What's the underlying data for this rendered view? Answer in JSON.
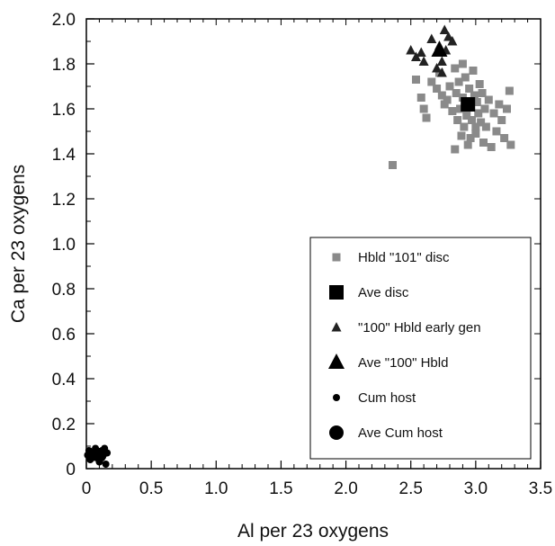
{
  "chart_data": {
    "type": "scatter",
    "title": "",
    "xlabel": "Al per 23 oxygens",
    "ylabel": "Ca per 23 oxygens",
    "xlim": [
      0,
      3.5
    ],
    "ylim": [
      0,
      2.0
    ],
    "xticks": [
      0,
      0.5,
      1.0,
      1.5,
      2.0,
      2.5,
      3.0,
      3.5
    ],
    "xtick_labels": [
      "0",
      "0.5",
      "1.0",
      "1.5",
      "2.0",
      "2.5",
      "3.0",
      "3.5"
    ],
    "yticks": [
      0,
      0.2,
      0.4,
      0.6,
      0.8,
      1.0,
      1.2,
      1.4,
      1.6,
      1.8,
      2.0
    ],
    "ytick_labels": [
      "0",
      "0.2",
      "0.4",
      "0.6",
      "0.8",
      "1.0",
      "1.2",
      "1.4",
      "1.6",
      "1.8",
      "2.0"
    ],
    "grid": false,
    "legend_position": "bottom-right",
    "series": [
      {
        "name": "Hbld \"101\" disc",
        "marker": "small-square",
        "color": "#8a8a8a",
        "points": [
          [
            2.36,
            1.35
          ],
          [
            2.54,
            1.73
          ],
          [
            2.58,
            1.65
          ],
          [
            2.6,
            1.6
          ],
          [
            2.62,
            1.56
          ],
          [
            2.66,
            1.72
          ],
          [
            2.7,
            1.69
          ],
          [
            2.72,
            1.76
          ],
          [
            2.74,
            1.66
          ],
          [
            2.76,
            1.62
          ],
          [
            2.78,
            1.64
          ],
          [
            2.8,
            1.7
          ],
          [
            2.82,
            1.59
          ],
          [
            2.84,
            1.78
          ],
          [
            2.85,
            1.67
          ],
          [
            2.86,
            1.55
          ],
          [
            2.87,
            1.72
          ],
          [
            2.88,
            1.6
          ],
          [
            2.89,
            1.48
          ],
          [
            2.9,
            1.65
          ],
          [
            2.91,
            1.52
          ],
          [
            2.92,
            1.74
          ],
          [
            2.93,
            1.57
          ],
          [
            2.94,
            1.44
          ],
          [
            2.95,
            1.69
          ],
          [
            2.96,
            1.61
          ],
          [
            2.97,
            1.55
          ],
          [
            2.98,
            1.77
          ],
          [
            2.99,
            1.66
          ],
          [
            3.0,
            1.49
          ],
          [
            3.01,
            1.63
          ],
          [
            3.02,
            1.58
          ],
          [
            3.03,
            1.71
          ],
          [
            3.04,
            1.54
          ],
          [
            3.05,
            1.67
          ],
          [
            3.06,
            1.45
          ],
          [
            3.07,
            1.6
          ],
          [
            3.08,
            1.52
          ],
          [
            3.1,
            1.64
          ],
          [
            3.12,
            1.43
          ],
          [
            3.14,
            1.58
          ],
          [
            3.16,
            1.5
          ],
          [
            3.18,
            1.62
          ],
          [
            3.2,
            1.55
          ],
          [
            3.22,
            1.47
          ],
          [
            3.24,
            1.6
          ],
          [
            3.26,
            1.68
          ],
          [
            3.27,
            1.44
          ],
          [
            2.84,
            1.42
          ],
          [
            2.9,
            1.8
          ],
          [
            3.0,
            1.52
          ],
          [
            2.96,
            1.47
          ]
        ]
      },
      {
        "name": "Ave disc",
        "marker": "large-square",
        "color": "#000000",
        "points": [
          [
            2.94,
            1.62
          ]
        ]
      },
      {
        "name": "\"100\" Hbld early gen",
        "marker": "small-triangle",
        "color": "#222222",
        "points": [
          [
            2.5,
            1.86
          ],
          [
            2.54,
            1.83
          ],
          [
            2.58,
            1.85
          ],
          [
            2.6,
            1.81
          ],
          [
            2.66,
            1.91
          ],
          [
            2.7,
            1.78
          ],
          [
            2.72,
            1.88
          ],
          [
            2.74,
            1.81
          ],
          [
            2.76,
            1.95
          ],
          [
            2.77,
            1.86
          ],
          [
            2.79,
            1.92
          ],
          [
            2.82,
            1.9
          ],
          [
            2.74,
            1.76
          ]
        ]
      },
      {
        "name": "Ave \"100\" Hbld",
        "marker": "large-triangle",
        "color": "#000000",
        "points": [
          [
            2.72,
            1.86
          ]
        ]
      },
      {
        "name": "Cum host",
        "marker": "small-circle",
        "color": "#000000",
        "points": [
          [
            0.01,
            0.06
          ],
          [
            0.02,
            0.08
          ],
          [
            0.03,
            0.04
          ],
          [
            0.05,
            0.07
          ],
          [
            0.06,
            0.05
          ],
          [
            0.07,
            0.09
          ],
          [
            0.1,
            0.03
          ],
          [
            0.12,
            0.08
          ],
          [
            0.13,
            0.06
          ],
          [
            0.14,
            0.09
          ],
          [
            0.15,
            0.02
          ],
          [
            0.16,
            0.07
          ]
        ]
      },
      {
        "name": "Ave Cum host",
        "marker": "large-circle",
        "color": "#000000",
        "points": [
          [
            0.1,
            0.06
          ]
        ]
      }
    ],
    "legend": [
      {
        "label": "Hbld \"101\" disc",
        "marker": "small-square"
      },
      {
        "label": "Ave disc",
        "marker": "large-square"
      },
      {
        "label": "\"100\" Hbld early gen",
        "marker": "small-triangle"
      },
      {
        "label": "Ave \"100\" Hbld",
        "marker": "large-triangle"
      },
      {
        "label": "Cum host",
        "marker": "small-circle"
      },
      {
        "label": "Ave Cum host",
        "marker": "large-circle"
      }
    ]
  }
}
